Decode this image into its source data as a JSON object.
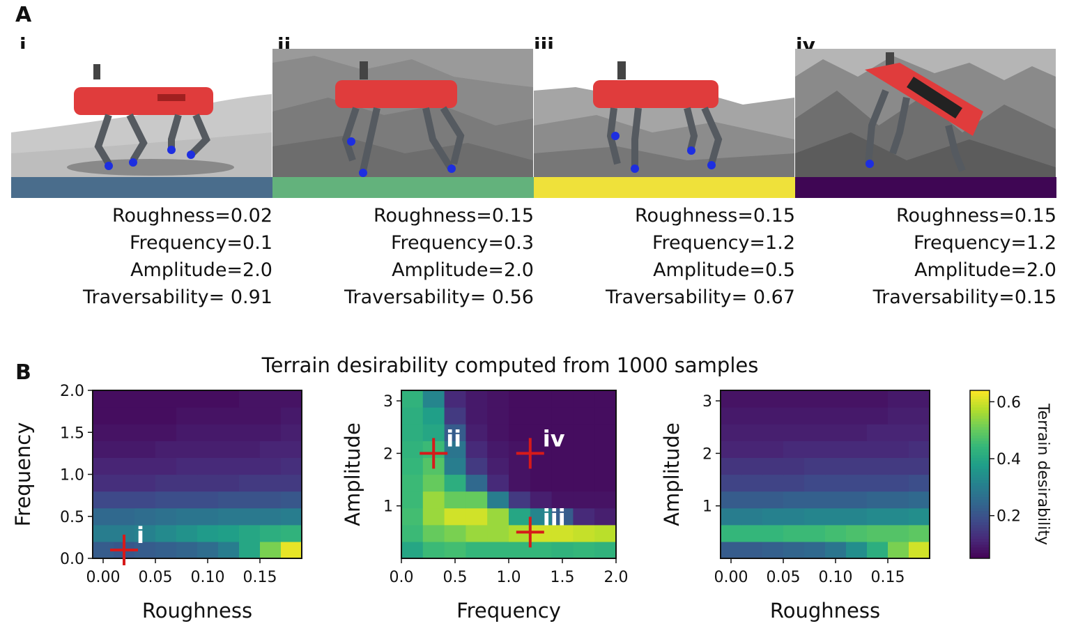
{
  "panel_a": {
    "letter": "A",
    "robot_colors": {
      "body": "#e03c3c",
      "legs": "#555a60",
      "feet": "#1d2ee0"
    },
    "scenarios": [
      {
        "label": "i",
        "bar_color": "#4a6d8c",
        "roughness": "Roughness=0.02",
        "frequency": "Frequency=0.1",
        "amplitude": "Amplitude=2.0",
        "traversability": "Traversability= 0.91"
      },
      {
        "label": "ii",
        "bar_color": "#63b27c",
        "roughness": "Roughness=0.15",
        "frequency": "Frequency=0.3",
        "amplitude": "Amplitude=2.0",
        "traversability": "Traversability= 0.56"
      },
      {
        "label": "iii",
        "bar_color": "#efe13a",
        "roughness": "Roughness=0.15",
        "frequency": "Frequency=1.2",
        "amplitude": "Amplitude=0.5",
        "traversability": "Traversability= 0.67"
      },
      {
        "label": "iv",
        "bar_color": "#3f0654",
        "roughness": "Roughness=0.15",
        "frequency": "Frequency=1.2",
        "amplitude": "Amplitude=2.0",
        "traversability": "Traversability=0.15"
      }
    ]
  },
  "panel_b": {
    "letter": "B",
    "title": "Terrain desirability computed from 1000 samples"
  },
  "chart_data": [
    {
      "type": "heatmap",
      "xlabel": "Roughness",
      "ylabel": "Frequency",
      "xlim": [
        -0.01,
        0.19
      ],
      "ylim": [
        0.0,
        2.0
      ],
      "xticks": [
        0.0,
        0.05,
        0.1,
        0.15
      ],
      "xtick_labels": [
        "0.00",
        "0.05",
        "0.10",
        "0.15"
      ],
      "yticks": [
        0.0,
        0.5,
        1.0,
        1.5,
        2.0
      ],
      "ytick_labels": [
        "0.0",
        "0.5",
        "1.0",
        "1.5",
        "2.0"
      ],
      "x_edges": [
        -0.01,
        0.01,
        0.03,
        0.05,
        0.07,
        0.09,
        0.11,
        0.13,
        0.15,
        0.17,
        0.19
      ],
      "y_edges": [
        0.0,
        0.2,
        0.4,
        0.6,
        0.8,
        1.0,
        1.2,
        1.4,
        1.6,
        1.8,
        2.0
      ],
      "values": [
        [
          0.22,
          0.21,
          0.22,
          0.23,
          0.24,
          0.26,
          0.3,
          0.4,
          0.52,
          0.62
        ],
        [
          0.3,
          0.3,
          0.31,
          0.33,
          0.35,
          0.37,
          0.38,
          0.4,
          0.42,
          0.43
        ],
        [
          0.25,
          0.25,
          0.26,
          0.27,
          0.28,
          0.28,
          0.29,
          0.29,
          0.29,
          0.3
        ],
        [
          0.18,
          0.18,
          0.18,
          0.19,
          0.19,
          0.19,
          0.2,
          0.2,
          0.2,
          0.21
        ],
        [
          0.13,
          0.13,
          0.13,
          0.14,
          0.14,
          0.14,
          0.14,
          0.15,
          0.15,
          0.15
        ],
        [
          0.11,
          0.11,
          0.11,
          0.11,
          0.12,
          0.12,
          0.12,
          0.12,
          0.12,
          0.13
        ],
        [
          0.09,
          0.09,
          0.09,
          0.1,
          0.1,
          0.1,
          0.1,
          0.1,
          0.11,
          0.11
        ],
        [
          0.08,
          0.08,
          0.08,
          0.08,
          0.09,
          0.09,
          0.09,
          0.09,
          0.09,
          0.1
        ],
        [
          0.07,
          0.07,
          0.07,
          0.07,
          0.08,
          0.08,
          0.08,
          0.08,
          0.08,
          0.09
        ],
        [
          0.07,
          0.07,
          0.07,
          0.07,
          0.07,
          0.07,
          0.07,
          0.08,
          0.08,
          0.08
        ]
      ],
      "markers": [
        {
          "x": 0.02,
          "y": 0.1,
          "label": "i"
        }
      ]
    },
    {
      "type": "heatmap",
      "xlabel": "Frequency",
      "ylabel": "Amplitude",
      "xlim": [
        0.0,
        2.0
      ],
      "ylim": [
        0.0,
        3.2
      ],
      "xticks": [
        0.0,
        0.5,
        1.0,
        1.5,
        2.0
      ],
      "xtick_labels": [
        "0.0",
        "0.5",
        "1.0",
        "1.5",
        "2.0"
      ],
      "yticks": [
        1,
        2,
        3
      ],
      "ytick_labels": [
        "1",
        "2",
        "3"
      ],
      "x_edges": [
        0.0,
        0.2,
        0.4,
        0.6,
        0.8,
        1.0,
        1.2,
        1.4,
        1.6,
        1.8,
        2.0
      ],
      "y_edges": [
        0.0,
        0.32,
        0.64,
        0.96,
        1.28,
        1.6,
        1.92,
        2.24,
        2.56,
        2.88,
        3.2
      ],
      "values": [
        [
          0.4,
          0.45,
          0.46,
          0.44,
          0.44,
          0.44,
          0.44,
          0.43,
          0.44,
          0.43
        ],
        [
          0.45,
          0.5,
          0.52,
          0.55,
          0.55,
          0.57,
          0.6,
          0.6,
          0.59,
          0.58
        ],
        [
          0.46,
          0.55,
          0.6,
          0.6,
          0.55,
          0.4,
          0.32,
          0.22,
          0.12,
          0.1
        ],
        [
          0.45,
          0.55,
          0.5,
          0.5,
          0.3,
          0.15,
          0.1,
          0.08,
          0.08,
          0.08
        ],
        [
          0.45,
          0.5,
          0.42,
          0.25,
          0.12,
          0.08,
          0.07,
          0.07,
          0.07,
          0.07
        ],
        [
          0.44,
          0.48,
          0.3,
          0.15,
          0.1,
          0.08,
          0.07,
          0.07,
          0.07,
          0.07
        ],
        [
          0.43,
          0.45,
          0.28,
          0.12,
          0.09,
          0.08,
          0.07,
          0.07,
          0.07,
          0.07
        ],
        [
          0.42,
          0.4,
          0.22,
          0.1,
          0.08,
          0.07,
          0.07,
          0.07,
          0.07,
          0.07
        ],
        [
          0.42,
          0.38,
          0.15,
          0.09,
          0.08,
          0.07,
          0.07,
          0.07,
          0.07,
          0.07
        ],
        [
          0.43,
          0.32,
          0.12,
          0.09,
          0.08,
          0.07,
          0.07,
          0.07,
          0.07,
          0.07
        ]
      ],
      "markers": [
        {
          "x": 0.3,
          "y": 2.0,
          "label": "ii"
        },
        {
          "x": 1.2,
          "y": 0.5,
          "label": "iii"
        },
        {
          "x": 1.2,
          "y": 2.0,
          "label": "iv"
        }
      ]
    },
    {
      "type": "heatmap",
      "xlabel": "Roughness",
      "ylabel": "Amplitude",
      "xlim": [
        -0.01,
        0.19
      ],
      "ylim": [
        0.0,
        3.2
      ],
      "xticks": [
        0.0,
        0.05,
        0.1,
        0.15
      ],
      "xtick_labels": [
        "0.00",
        "0.05",
        "0.10",
        "0.15"
      ],
      "yticks": [
        1,
        2,
        3
      ],
      "ytick_labels": [
        "1",
        "2",
        "3"
      ],
      "x_edges": [
        -0.01,
        0.01,
        0.03,
        0.05,
        0.07,
        0.09,
        0.11,
        0.13,
        0.15,
        0.17,
        0.19
      ],
      "y_edges": [
        0.0,
        0.32,
        0.64,
        0.96,
        1.28,
        1.6,
        1.92,
        2.24,
        2.56,
        2.88,
        3.2
      ],
      "values": [
        [
          0.22,
          0.22,
          0.23,
          0.24,
          0.25,
          0.28,
          0.34,
          0.42,
          0.52,
          0.6
        ],
        [
          0.44,
          0.44,
          0.44,
          0.45,
          0.45,
          0.46,
          0.47,
          0.48,
          0.48,
          0.49
        ],
        [
          0.3,
          0.3,
          0.31,
          0.31,
          0.32,
          0.32,
          0.32,
          0.33,
          0.33,
          0.34
        ],
        [
          0.22,
          0.22,
          0.22,
          0.23,
          0.23,
          0.23,
          0.23,
          0.24,
          0.24,
          0.25
        ],
        [
          0.17,
          0.17,
          0.17,
          0.17,
          0.18,
          0.18,
          0.18,
          0.18,
          0.18,
          0.19
        ],
        [
          0.14,
          0.14,
          0.14,
          0.14,
          0.15,
          0.15,
          0.15,
          0.15,
          0.15,
          0.15
        ],
        [
          0.11,
          0.11,
          0.11,
          0.12,
          0.12,
          0.12,
          0.12,
          0.12,
          0.12,
          0.13
        ],
        [
          0.1,
          0.1,
          0.1,
          0.1,
          0.1,
          0.1,
          0.1,
          0.11,
          0.11,
          0.11
        ],
        [
          0.09,
          0.09,
          0.09,
          0.09,
          0.09,
          0.09,
          0.09,
          0.09,
          0.1,
          0.1
        ],
        [
          0.08,
          0.08,
          0.08,
          0.08,
          0.08,
          0.08,
          0.08,
          0.08,
          0.09,
          0.09
        ]
      ],
      "markers": []
    }
  ],
  "colorbar": {
    "label": "Terrain desirability",
    "range": [
      0.05,
      0.64
    ],
    "ticks": [
      0.2,
      0.4,
      0.6
    ],
    "tick_labels": [
      "0.2",
      "0.4",
      "0.6"
    ]
  },
  "marker_color": "#d61a1a"
}
